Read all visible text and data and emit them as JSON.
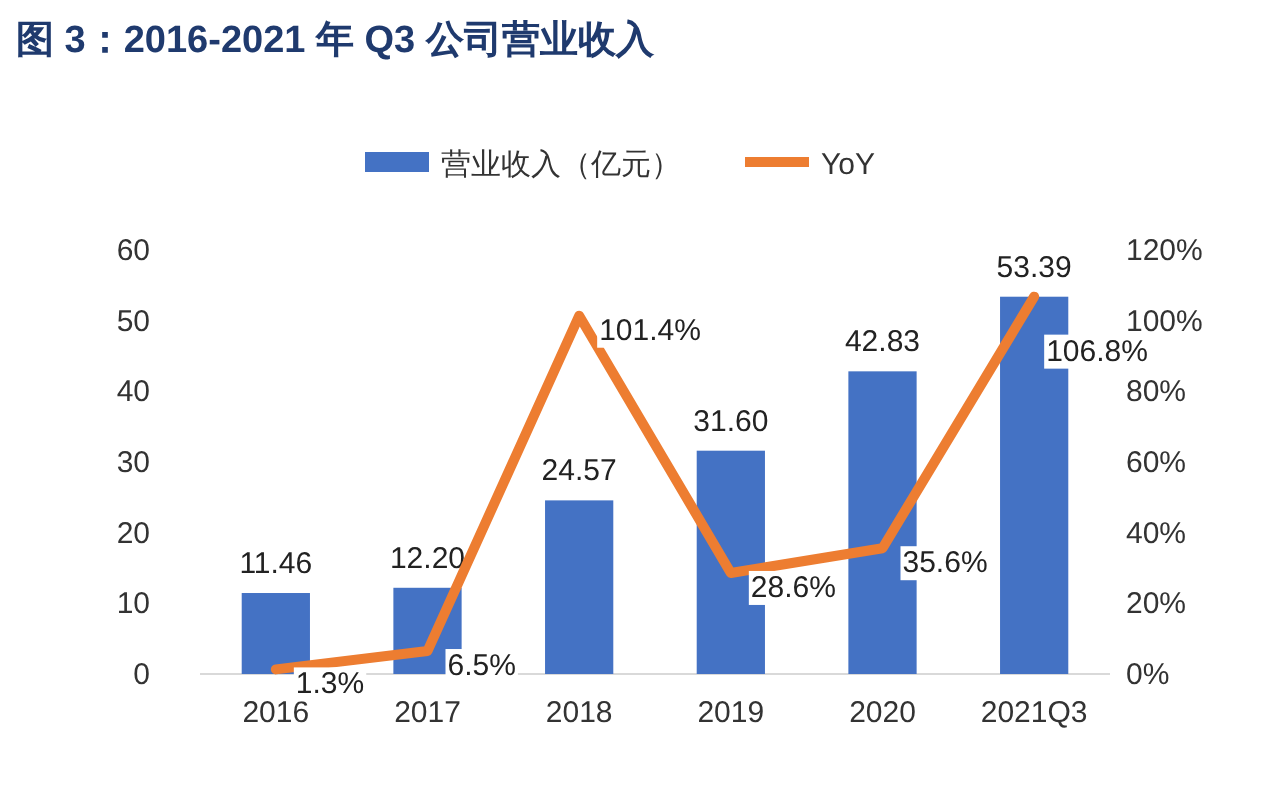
{
  "chart_data": {
    "type": "bar",
    "title": "图 3：2016-2021 年 Q3 公司营业收入",
    "categories": [
      "2016",
      "2017",
      "2018",
      "2019",
      "2020",
      "2021Q3"
    ],
    "series": [
      {
        "name": "营业收入（亿元）",
        "color": "#4472c4",
        "values": [
          11.46,
          12.2,
          24.57,
          31.6,
          42.83,
          53.39
        ],
        "value_labels": [
          "11.46",
          "12.20",
          "24.57",
          "31.60",
          "42.83",
          "53.39"
        ]
      },
      {
        "name": "YoY",
        "type": "line",
        "axis": "y2",
        "color": "#ed7d31",
        "values": [
          1.3,
          6.5,
          101.4,
          28.6,
          35.6,
          106.8
        ],
        "value_labels": [
          "1.3%",
          "6.5%",
          "101.4%",
          "28.6%",
          "35.6%",
          "106.8%"
        ]
      }
    ],
    "ylim": [
      0,
      60
    ],
    "yticks": [
      0,
      10,
      20,
      30,
      40,
      50,
      60
    ],
    "y2lim": [
      0,
      120
    ],
    "y2ticks": [
      {
        "value": 0,
        "label": "0%"
      },
      {
        "value": 20,
        "label": "20%"
      },
      {
        "value": 40,
        "label": "40%"
      },
      {
        "value": 60,
        "label": "60%"
      },
      {
        "value": 80,
        "label": "80%"
      },
      {
        "value": 100,
        "label": "100%"
      },
      {
        "value": 120,
        "label": "120%"
      }
    ],
    "legend": "top",
    "grid": false,
    "marker": "none"
  }
}
